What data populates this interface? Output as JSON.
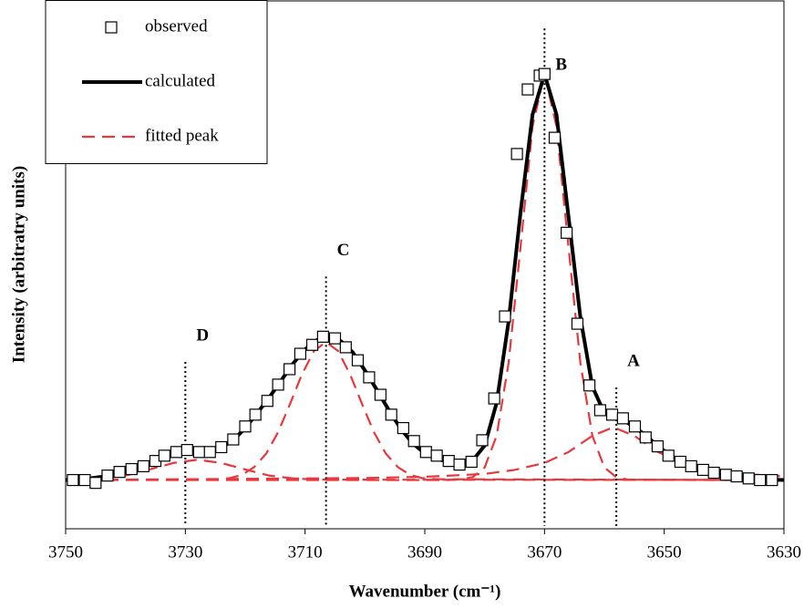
{
  "chart_data": {
    "type": "line",
    "x_label": "Wavenumber (cm⁻¹)",
    "y_label": "Intensity (arbitratry units)",
    "xlim": [
      3750,
      3630
    ],
    "xticks": [
      3750,
      3730,
      3710,
      3690,
      3670,
      3650,
      3630
    ],
    "ylim": [
      -0.12,
      1.18
    ],
    "legend": "upper left",
    "series": [
      {
        "name": "observed",
        "style": "markers",
        "color": "#000000",
        "x": [
          3748.8,
          3746.8,
          3745,
          3743,
          3741,
          3739,
          3737,
          3735,
          3733.5,
          3731.5,
          3729.7,
          3727.7,
          3725.9,
          3724,
          3722,
          3720,
          3718.3,
          3716.3,
          3714.5,
          3712.6,
          3710.8,
          3708.8,
          3707,
          3705,
          3703.2,
          3701.2,
          3699.3,
          3697.4,
          3695.6,
          3693.6,
          3691.8,
          3689.8,
          3688,
          3686,
          3684.2,
          3682.2,
          3680.4,
          3678.4,
          3676.6,
          3674.6,
          3672.8,
          3670.8,
          3670,
          3668.3,
          3666.3,
          3664.5,
          3662.5,
          3660.7,
          3658.7,
          3656.9,
          3654.9,
          3653.1,
          3651.1,
          3649.3,
          3647.3,
          3645.5,
          3643.5,
          3641.7,
          3639.7,
          3637.9,
          3635.9,
          3634,
          3632
        ],
        "values": [
          0,
          0,
          -0.007,
          0.011,
          0.02,
          0.027,
          0.034,
          0.047,
          0.06,
          0.069,
          0.074,
          0.069,
          0.069,
          0.081,
          0.1,
          0.132,
          0.161,
          0.195,
          0.235,
          0.273,
          0.311,
          0.333,
          0.353,
          0.349,
          0.327,
          0.295,
          0.253,
          0.21,
          0.161,
          0.128,
          0.096,
          0.069,
          0.06,
          0.047,
          0.038,
          0.045,
          0.098,
          0.201,
          0.403,
          0.803,
          0.962,
          0.996,
          1.0,
          0.843,
          0.609,
          0.385,
          0.233,
          0.172,
          0.161,
          0.152,
          0.132,
          0.105,
          0.083,
          0.06,
          0.045,
          0.034,
          0.025,
          0.018,
          0.013,
          0.009,
          0.004,
          0,
          0
        ]
      },
      {
        "name": "calculated",
        "style": "solid",
        "color": "#000000",
        "x": [
          3750,
          3748,
          3746,
          3744,
          3742,
          3740,
          3738,
          3736,
          3734,
          3732,
          3730,
          3728,
          3726,
          3724,
          3722,
          3720,
          3718,
          3716,
          3714,
          3712,
          3710,
          3708,
          3706,
          3704,
          3702,
          3700,
          3698,
          3696,
          3694,
          3692,
          3690,
          3688,
          3686,
          3684,
          3682,
          3680,
          3678,
          3676,
          3674,
          3672,
          3670,
          3668,
          3666,
          3664,
          3662,
          3660,
          3658,
          3656,
          3654,
          3652,
          3650,
          3648,
          3646,
          3644,
          3642,
          3640,
          3638,
          3636,
          3634,
          3632,
          3630
        ],
        "values": [
          0,
          0.001,
          0.004,
          0.008,
          0.014,
          0.022,
          0.031,
          0.042,
          0.054,
          0.064,
          0.07,
          0.072,
          0.072,
          0.08,
          0.098,
          0.128,
          0.165,
          0.203,
          0.245,
          0.287,
          0.322,
          0.345,
          0.352,
          0.342,
          0.314,
          0.27,
          0.222,
          0.172,
          0.126,
          0.09,
          0.066,
          0.052,
          0.045,
          0.04,
          0.048,
          0.085,
          0.19,
          0.39,
          0.66,
          0.9,
          1.0,
          0.9,
          0.65,
          0.4,
          0.23,
          0.165,
          0.152,
          0.14,
          0.12,
          0.096,
          0.072,
          0.052,
          0.038,
          0.028,
          0.02,
          0.014,
          0.01,
          0.006,
          0.003,
          0.001,
          0
        ]
      }
    ],
    "fitted_peaks": {
      "name": "fitted peak",
      "style": "dashed",
      "color": "#e8383d",
      "curves": [
        {
          "x": [
            3750,
            3744,
            3740,
            3736,
            3732,
            3728,
            3724,
            3720,
            3716,
            3712,
            3708,
            3630
          ],
          "values": [
            0.001,
            0.004,
            0.011,
            0.026,
            0.042,
            0.05,
            0.042,
            0.026,
            0.011,
            0.004,
            0.001,
            0
          ]
        },
        {
          "x": [
            3750,
            3724,
            3722.5,
            3720.5,
            3718.5,
            3716.5,
            3714.5,
            3712.5,
            3710.5,
            3708.5,
            3706.5,
            3704.5,
            3702.5,
            3700.5,
            3698.5,
            3696.5,
            3694.5,
            3692.5,
            3690.5,
            3688,
            3630
          ],
          "values": [
            0,
            0.002,
            0.005,
            0.013,
            0.032,
            0.065,
            0.118,
            0.188,
            0.261,
            0.318,
            0.34,
            0.318,
            0.261,
            0.188,
            0.118,
            0.065,
            0.032,
            0.013,
            0.005,
            0.002,
            0
          ]
        },
        {
          "x": [
            3750,
            3686,
            3684,
            3682,
            3680,
            3678,
            3676,
            3674,
            3672,
            3670,
            3668,
            3666,
            3664,
            3662,
            3660,
            3658,
            3656,
            3630
          ],
          "values": [
            0,
            0,
            0.002,
            0.007,
            0.031,
            0.109,
            0.288,
            0.575,
            0.871,
            1.0,
            0.871,
            0.575,
            0.288,
            0.109,
            0.031,
            0.007,
            0.001,
            0
          ]
        },
        {
          "x": [
            3750,
            3700,
            3690,
            3680,
            3675,
            3670,
            3666,
            3662,
            3658.5,
            3655,
            3651,
            3647,
            3642,
            3637,
            3630
          ],
          "values": [
            0,
            0.005,
            0.008,
            0.015,
            0.025,
            0.042,
            0.069,
            0.109,
            0.13,
            0.109,
            0.069,
            0.042,
            0.025,
            0.015,
            0.009
          ]
        }
      ]
    },
    "annotations": [
      {
        "label": "A",
        "x": 3658,
        "y_top": 0.228
      },
      {
        "label": "B",
        "x": 3670,
        "y_top": 1.112
      },
      {
        "label": "C",
        "x": 3706.5,
        "y_top": 0.501
      },
      {
        "label": "D",
        "x": 3730,
        "y_top": 0.291
      }
    ]
  }
}
